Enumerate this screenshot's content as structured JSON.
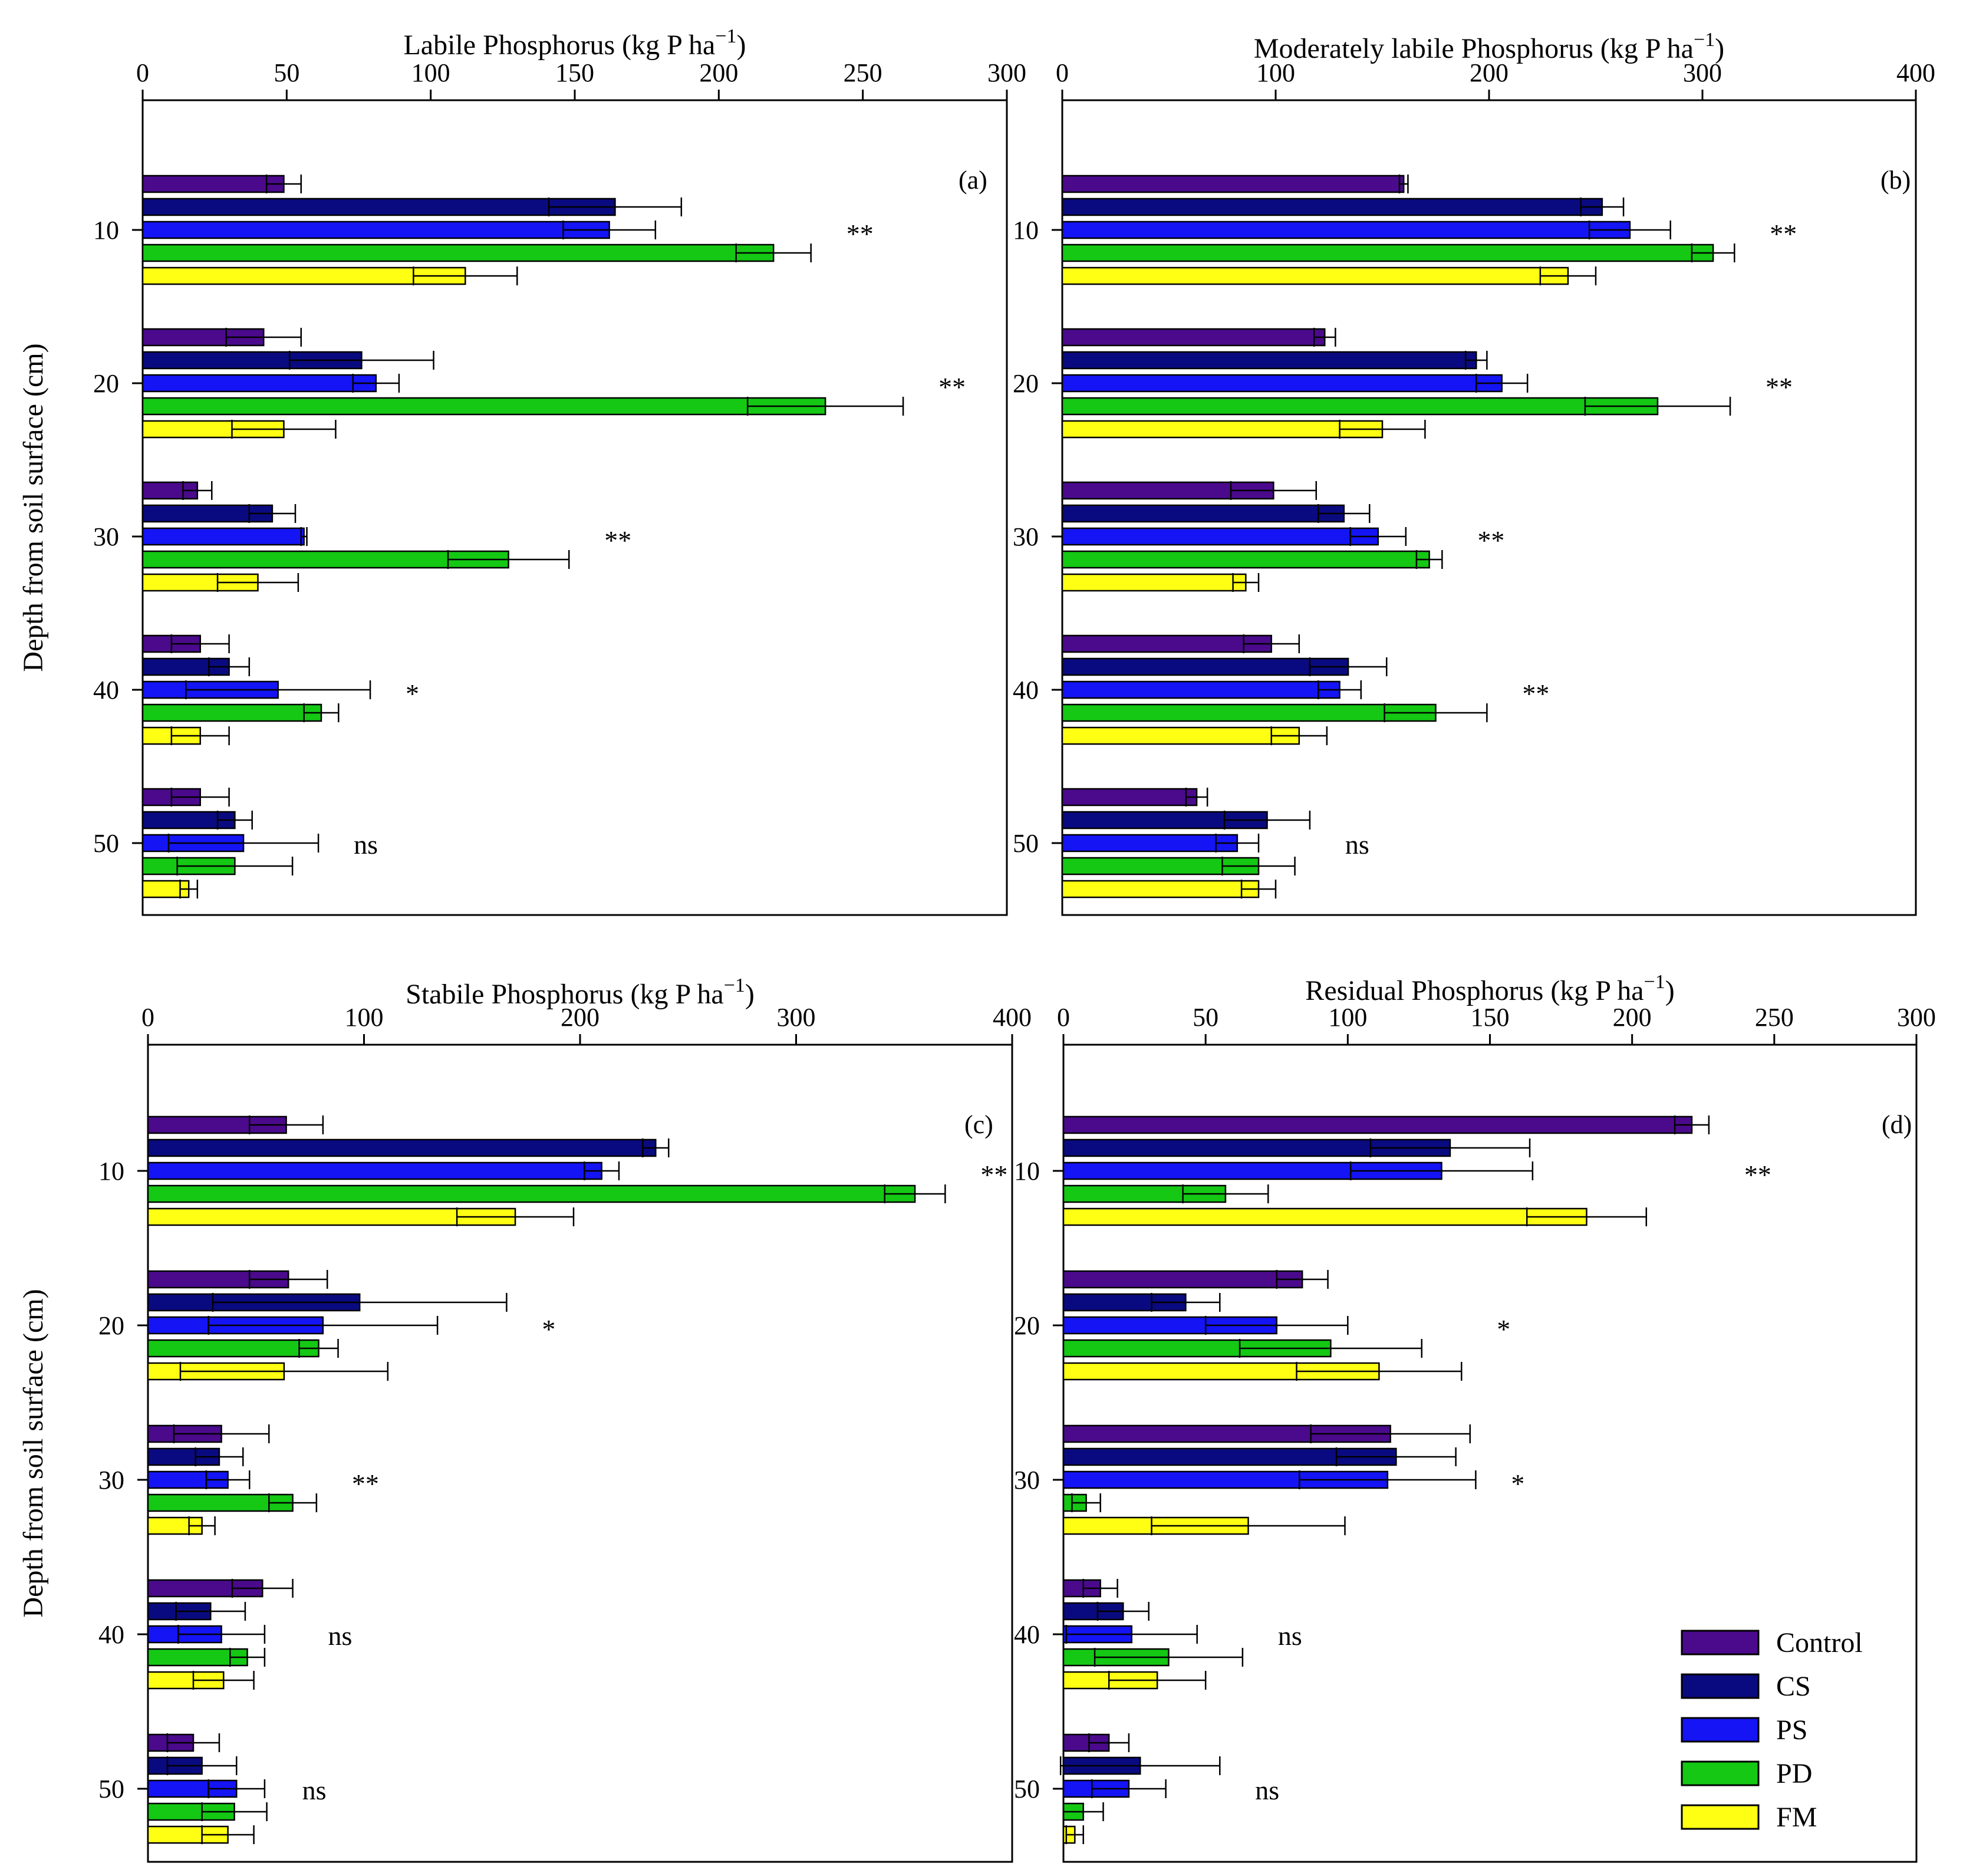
{
  "figure": {
    "ylabel": "Depth from soil surface (cm)",
    "series_names": [
      "Control",
      "CS",
      "PS",
      "PD",
      "FM"
    ],
    "colors": {
      "Control": "#4b0a8c",
      "CS": "#0a0a80",
      "PS": "#1414f5",
      "PD": "#14c814",
      "FM": "#ffff14"
    }
  },
  "legend": {
    "items": [
      {
        "label": "Control",
        "color": "#4b0a8c"
      },
      {
        "label": "CS",
        "color": "#0a0a80"
      },
      {
        "label": "PS",
        "color": "#1414f5"
      },
      {
        "label": "PD",
        "color": "#14c814"
      },
      {
        "label": "FM",
        "color": "#ffff14"
      }
    ]
  },
  "chart_data": [
    {
      "type": "bar",
      "orientation": "horizontal",
      "panel": "(a)",
      "title": "Labile Phosphorus (kg P ha",
      "title_exp": "−1",
      "title_close": ")",
      "ylabel": "Depth from soil surface (cm)",
      "categories": [
        "10",
        "20",
        "30",
        "40",
        "50"
      ],
      "xlim": [
        0,
        300
      ],
      "xticks": [
        0,
        50,
        100,
        150,
        200,
        250,
        300
      ],
      "series": [
        {
          "name": "Control",
          "values": [
            49,
            42,
            19,
            20,
            20
          ],
          "errors": [
            6,
            13,
            5,
            10,
            10
          ]
        },
        {
          "name": "CS",
          "values": [
            164,
            76,
            45,
            30,
            32
          ],
          "errors": [
            23,
            25,
            8,
            7,
            6
          ]
        },
        {
          "name": "PS",
          "values": [
            162,
            81,
            56,
            47,
            35
          ],
          "errors": [
            16,
            8,
            1,
            32,
            26
          ]
        },
        {
          "name": "PD",
          "values": [
            219,
            237,
            127,
            62,
            32
          ],
          "errors": [
            13,
            27,
            21,
            6,
            20
          ]
        },
        {
          "name": "FM",
          "values": [
            112,
            49,
            40,
            20,
            16
          ],
          "errors": [
            18,
            18,
            14,
            10,
            3
          ]
        }
      ],
      "significance": [
        "**",
        "**",
        "**",
        "*",
        "ns"
      ]
    },
    {
      "type": "bar",
      "orientation": "horizontal",
      "panel": "(b)",
      "title": "Moderately labile Phosphorus (kg P ha",
      "title_exp": "−1",
      "title_close": ")",
      "ylabel": "",
      "categories": [
        "10",
        "20",
        "30",
        "40",
        "50"
      ],
      "xlim": [
        0,
        400
      ],
      "xticks": [
        0,
        100,
        200,
        300,
        400
      ],
      "series": [
        {
          "name": "Control",
          "values": [
            160,
            123,
            99,
            98,
            63
          ],
          "errors": [
            2,
            5,
            20,
            13,
            5
          ]
        },
        {
          "name": "CS",
          "values": [
            253,
            194,
            132,
            134,
            96
          ],
          "errors": [
            10,
            5,
            12,
            18,
            20
          ]
        },
        {
          "name": "PS",
          "values": [
            266,
            206,
            148,
            130,
            82
          ],
          "errors": [
            19,
            12,
            13,
            10,
            10
          ]
        },
        {
          "name": "PD",
          "values": [
            305,
            279,
            172,
            175,
            92
          ],
          "errors": [
            10,
            34,
            6,
            24,
            17
          ]
        },
        {
          "name": "FM",
          "values": [
            237,
            150,
            86,
            111,
            92
          ],
          "errors": [
            13,
            20,
            6,
            13,
            8
          ]
        }
      ],
      "significance": [
        "**",
        "**",
        "**",
        "**",
        "ns"
      ]
    },
    {
      "type": "bar",
      "orientation": "horizontal",
      "panel": "(c)",
      "title": "Stabile Phosphorus (kg P ha",
      "title_exp": "−1",
      "title_close": ")",
      "ylabel": "Depth from soil surface (cm)",
      "categories": [
        "10",
        "20",
        "30",
        "40",
        "50"
      ],
      "xlim": [
        0,
        400
      ],
      "xticks": [
        0,
        100,
        200,
        300,
        400
      ],
      "series": [
        {
          "name": "Control",
          "values": [
            64,
            65,
            34,
            53,
            21
          ],
          "errors": [
            17,
            18,
            22,
            14,
            12
          ]
        },
        {
          "name": "CS",
          "values": [
            235,
            98,
            33,
            29,
            25
          ],
          "errors": [
            6,
            68,
            11,
            16,
            16
          ]
        },
        {
          "name": "PS",
          "values": [
            210,
            81,
            37,
            34,
            41
          ],
          "errors": [
            8,
            53,
            10,
            20,
            13
          ]
        },
        {
          "name": "PD",
          "values": [
            355,
            79,
            67,
            46,
            40
          ],
          "errors": [
            14,
            9,
            11,
            8,
            15
          ]
        },
        {
          "name": "FM",
          "values": [
            170,
            63,
            25,
            35,
            37
          ],
          "errors": [
            27,
            48,
            6,
            14,
            12
          ]
        }
      ],
      "significance": [
        "**",
        "*",
        "**",
        "ns",
        "ns"
      ]
    },
    {
      "type": "bar",
      "orientation": "horizontal",
      "panel": "(d)",
      "title": "Residual Phosphorus (kg P ha",
      "title_exp": "−1",
      "title_close": ")",
      "ylabel": "",
      "categories": [
        "10",
        "20",
        "30",
        "40",
        "50"
      ],
      "xlim": [
        0,
        300
      ],
      "xticks": [
        0,
        50,
        100,
        150,
        200,
        250,
        300
      ],
      "series": [
        {
          "name": "Control",
          "values": [
            221,
            84,
            115,
            13,
            16
          ],
          "errors": [
            6,
            9,
            28,
            6,
            7
          ]
        },
        {
          "name": "CS",
          "values": [
            136,
            43,
            117,
            21,
            27
          ],
          "errors": [
            28,
            12,
            21,
            9,
            28
          ]
        },
        {
          "name": "PS",
          "values": [
            133,
            75,
            114,
            24,
            23
          ],
          "errors": [
            32,
            25,
            31,
            23,
            13
          ]
        },
        {
          "name": "PD",
          "values": [
            57,
            94,
            8,
            37,
            7
          ],
          "errors": [
            15,
            32,
            5,
            26,
            7
          ]
        },
        {
          "name": "FM",
          "values": [
            184,
            111,
            65,
            33,
            4
          ],
          "errors": [
            21,
            29,
            34,
            17,
            3
          ]
        }
      ],
      "significance": [
        "**",
        "*",
        "*",
        "ns",
        "ns"
      ]
    }
  ]
}
